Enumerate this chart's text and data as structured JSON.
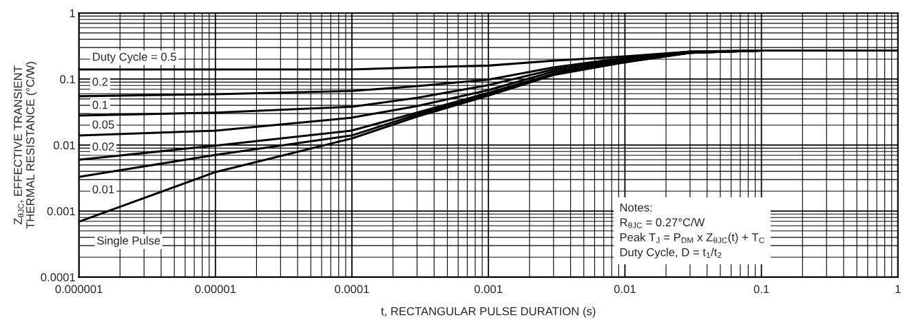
{
  "chart_data": {
    "type": "line",
    "xlabel": "t, RECTANGULAR PULSE DURATION (s)",
    "ylabel": "Z$_{θJC}$, EFFECTIVE TRANSIENT\nTHERMAL RESISTANCE (°C/W)",
    "x": [
      1e-06,
      1e-05,
      0.0001,
      0.0003,
      0.001,
      0.003,
      0.01,
      0.03,
      0.1,
      1
    ],
    "series": [
      {
        "name": "Duty Cycle = 0.5",
        "color": "#000000",
        "values": [
          0.14,
          0.14,
          0.14,
          0.15,
          0.16,
          0.19,
          0.22,
          0.26,
          0.27,
          0.27
        ]
      },
      {
        "name": "0.2",
        "color": "#000000",
        "values": [
          0.055,
          0.059,
          0.066,
          0.078,
          0.098,
          0.15,
          0.21,
          0.26,
          0.27,
          0.27
        ]
      },
      {
        "name": "0.1",
        "color": "#000000",
        "values": [
          0.028,
          0.031,
          0.038,
          0.052,
          0.081,
          0.14,
          0.2,
          0.25,
          0.27,
          0.27
        ]
      },
      {
        "name": "0.05",
        "color": "#000000",
        "values": [
          0.014,
          0.0165,
          0.026,
          0.039,
          0.068,
          0.13,
          0.19,
          0.25,
          0.27,
          0.27
        ]
      },
      {
        "name": "0.02",
        "color": "#000000",
        "values": [
          0.006,
          0.0098,
          0.0166,
          0.031,
          0.062,
          0.12,
          0.19,
          0.25,
          0.27,
          0.27
        ]
      },
      {
        "name": "0.01",
        "color": "#000000",
        "values": [
          0.0033,
          0.0071,
          0.014,
          0.029,
          0.059,
          0.12,
          0.18,
          0.25,
          0.27,
          0.27
        ]
      },
      {
        "name": "Single Pulse",
        "color": "#000000",
        "values": [
          0.00069,
          0.0039,
          0.0126,
          0.027,
          0.056,
          0.115,
          0.18,
          0.25,
          0.27,
          0.27
        ]
      }
    ],
    "annotations": [
      "Notes:\nR$_{θJC}$ = 0.27°C/W\nPeak T$_{J}$ = P$_{DM}$ x Z$_{θJC}$(t) + T$_{C}$\nDuty Cycle, D = t$_{1}$/t$_{2}$"
    ],
    "log": "xy",
    "xlim": [
      1e-06,
      1
    ],
    "ylim": [
      0.0001,
      1
    ],
    "xticks": [
      {
        "value": 1e-06,
        "label": "0.000001"
      },
      {
        "value": 1e-05,
        "label": "0.00001"
      },
      0.0001,
      0.001,
      0.01,
      0.1,
      1
    ],
    "yticks": [
      0.0001,
      0.001,
      0.01,
      0.1,
      1
    ],
    "grid": true,
    "legend": false,
    "marker": "none",
    "line_style": "solid"
  }
}
